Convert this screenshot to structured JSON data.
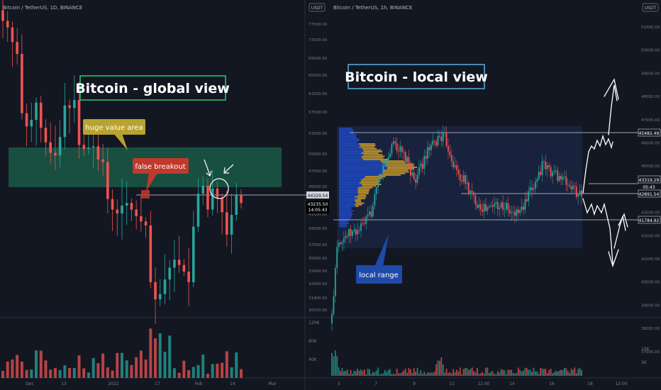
{
  "left_panel": {
    "header": "Bitcoin / TetherUS, 1D, BINANCE",
    "currency_badge": "USDT",
    "price_ticks": [
      "77500.00",
      "73500.00",
      "69500.00",
      "65500.00",
      "61500.00",
      "57500.00",
      "53500.00",
      "50500.00",
      "47500.00",
      "45500.00",
      "41500.00",
      "39500.00",
      "37500.00",
      "35900.00",
      "33400.00",
      "32400.00",
      "31400.00",
      "30100.00"
    ],
    "last_price_label": "44329.54",
    "current_price_label": "43235.50",
    "countdown_label": "14:05:43",
    "volume_ticks": [
      "120K",
      "80K",
      "40K"
    ],
    "date_ticks": [
      "Dec",
      "13",
      "2022",
      "17",
      "Feb",
      "14",
      "Mar"
    ]
  },
  "right_panel": {
    "header": "Bitcoin / TetherUS, 1h, BINANCE",
    "currency_badge": "USDT",
    "price_ticks": [
      "51000.00",
      "50000.00",
      "49000.00",
      "48000.00",
      "47000.00",
      "46000.00",
      "45000.00",
      "44000.00",
      "43000.00",
      "42000.00",
      "41000.00",
      "40000.00",
      "39000.00",
      "38000.00",
      "37000.00"
    ],
    "levels": [
      "45482.49",
      "43319.29",
      "42891.54",
      "41784.92"
    ],
    "countdown_label": "05:43",
    "volume_ticks": [
      "10K",
      "5K"
    ],
    "date_ticks": [
      "5",
      "7",
      "9",
      "11",
      "12:00",
      "14",
      "16",
      "18",
      "12:00"
    ]
  },
  "annotations": {
    "global_title": "Bitcoin - global view",
    "local_title": "Bitcoin - local view",
    "value_area_label": "huge value area",
    "false_breakout_label": "false breakout",
    "local_range_label": "local range"
  },
  "colors": {
    "background": "#131722",
    "up_candle": "#26a69a",
    "down_candle": "#ef5350",
    "value_area": "#1e7d5a",
    "global_title_border": "#2ecc71",
    "local_title_border": "#5dade2",
    "value_area_callout": "#b8a230",
    "false_breakout_callout": "#c0392b",
    "local_range_callout": "#1f4aa8",
    "local_range_box": "#1a2440",
    "volume_profile": "#1e4fd8",
    "volume_profile_poc": "#d4a12a"
  },
  "chart_data": [
    {
      "type": "candlestick",
      "title": "Bitcoin / TetherUS, 1D, BINANCE",
      "x_ticks": [
        "Dec",
        "13",
        "2022",
        "17",
        "Feb",
        "14",
        "Mar"
      ],
      "ylim": [
        30100,
        77500
      ],
      "last_price": 44329.54,
      "current_price": 43235.5,
      "series": [
        {
          "name": "close",
          "values": [
            57000,
            56500,
            55400,
            54500,
            50000,
            49000,
            49500,
            50800,
            48900,
            47800,
            47000,
            46800,
            48200,
            50600,
            50400,
            51000,
            47600,
            47300,
            47400,
            47500,
            46500,
            46300,
            43500,
            42700,
            42400,
            43000,
            43200,
            42700,
            42200,
            41800,
            41500,
            37200,
            35900,
            36300,
            37400,
            38300,
            38900,
            38500,
            38000,
            37200,
            41400,
            43900,
            44500,
            42700,
            44300,
            43600,
            42500,
            40800,
            42300,
            43800,
            43200
          ]
        }
      ]
    },
    {
      "type": "candlestick",
      "title": "Bitcoin / TetherUS, 1h, BINANCE",
      "x_ticks": [
        "5",
        "7",
        "9",
        "11",
        "12:00",
        "14",
        "16",
        "18",
        "12:00"
      ],
      "ylim": [
        37000,
        51000
      ],
      "levels": [
        45482.49,
        43319.29,
        42891.54,
        41784.92
      ],
      "series": [
        {
          "name": "close",
          "values": [
            37600,
            40800,
            41000,
            41100,
            41200,
            41300,
            41500,
            41800,
            42300,
            43300,
            44000,
            44500,
            45200,
            44800,
            44500,
            44100,
            43500,
            43800,
            44400,
            44800,
            45000,
            45400,
            45300,
            44700,
            44000,
            43600,
            43400,
            42900,
            42600,
            42400,
            42200,
            42300,
            42500,
            42400,
            42300,
            42000,
            42100,
            42200,
            42600,
            43100,
            43600,
            44100,
            44000,
            43800,
            43700,
            43500,
            43300,
            43100,
            42900
          ]
        }
      ]
    }
  ]
}
